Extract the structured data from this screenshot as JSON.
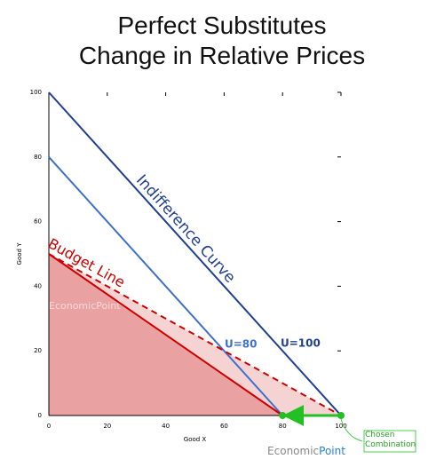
{
  "chart_data": {
    "type": "line",
    "title": "Perfect Substitutes\nChange in Relative Prices",
    "x_label": "Good X",
    "y_label": "Good Y",
    "xlim": [
      0,
      100
    ],
    "ylim": [
      0,
      100
    ],
    "xticks": [
      0,
      20,
      40,
      60,
      80,
      100
    ],
    "yticks": [
      0,
      20,
      40,
      60,
      80,
      100
    ],
    "series": [
      {
        "name": "U=100",
        "color": "#1f3f91",
        "x": [
          0,
          100
        ],
        "y": [
          100,
          0
        ]
      },
      {
        "name": "U=80",
        "color": "#3d70cc",
        "x": [
          0,
          80
        ],
        "y": [
          80,
          0
        ]
      },
      {
        "name": "Budget Line",
        "color": "#cc0000",
        "x": [
          0,
          80
        ],
        "y": [
          50,
          0
        ],
        "fill": "#e9a1a1"
      },
      {
        "color": "#cc0000",
        "x": [
          0,
          100
        ],
        "y": [
          50,
          0
        ],
        "dashed": true,
        "fill": "#f6d3d3"
      }
    ],
    "arrow": {
      "color": "#22c022",
      "x": [
        100,
        80
      ],
      "y": [
        0,
        0
      ]
    },
    "annotations": {
      "indifference": "Indifference Curve",
      "budget": "Budget Line",
      "chosen": "Chosen Combination"
    },
    "watermark": "EconomicPoint",
    "brand": [
      "Economic",
      "Point"
    ]
  }
}
